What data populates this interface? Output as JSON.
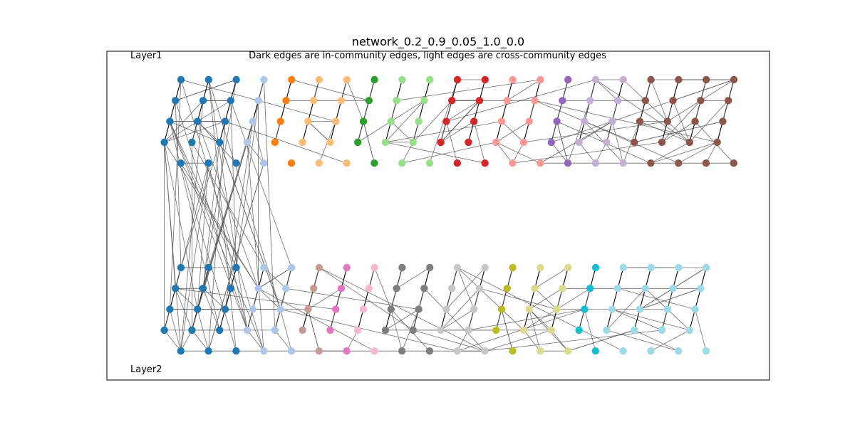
{
  "figure": {
    "title": "network_0.2_0.9_0.05_1.0_0.0",
    "subtitle": "Dark edges are in-community edges, light edges are cross-community edges",
    "layer_labels": [
      "Layer1",
      "Layer2"
    ]
  },
  "palette": [
    "#1f77b4",
    "#aec7e8",
    "#ff7f0e",
    "#ffbb78",
    "#2ca02c",
    "#98df8a",
    "#d62728",
    "#ff9896",
    "#9467bd",
    "#c5b0d5",
    "#8c564b",
    "#c49c94",
    "#e377c2",
    "#f7b6d2",
    "#7f7f7f",
    "#c7c7c7",
    "#bcbd22",
    "#dbdb8d",
    "#17becf",
    "#9edae5"
  ],
  "layers": [
    {
      "name": "Layer1",
      "communities": [
        {
          "color": "#1f77b4",
          "strips": 3,
          "rows": [
            0,
            1,
            2,
            3,
            4
          ]
        },
        {
          "color": "#aec7e8",
          "strips": 1,
          "rows": [
            0,
            1,
            2,
            3,
            4
          ]
        },
        {
          "color": "#ff7f0e",
          "strips": 1,
          "rows": [
            0,
            1,
            2,
            3,
            4
          ]
        },
        {
          "color": "#ffbb78",
          "strips": 2,
          "rows": [
            0,
            1,
            2,
            3,
            4
          ]
        },
        {
          "color": "#2ca02c",
          "strips": 1,
          "rows": [
            0,
            1,
            2,
            3,
            4
          ]
        },
        {
          "color": "#98df8a",
          "strips": 2,
          "rows": [
            0,
            1,
            2,
            3,
            4
          ]
        },
        {
          "color": "#d62728",
          "strips": 2,
          "rows": [
            0,
            1,
            2,
            3,
            4
          ]
        },
        {
          "color": "#ff9896",
          "strips": 2,
          "rows": [
            0,
            1,
            2,
            3,
            4
          ]
        },
        {
          "color": "#9467bd",
          "strips": 1,
          "rows": [
            0,
            1,
            2,
            3,
            4
          ]
        },
        {
          "color": "#c5b0d5",
          "strips": 2,
          "rows": [
            0,
            1,
            2,
            3,
            4
          ]
        },
        {
          "color": "#8c564b",
          "strips": 4,
          "rows": [
            0,
            1,
            2,
            3,
            4
          ]
        }
      ]
    },
    {
      "name": "Layer2",
      "communities": [
        {
          "color": "#1f77b4",
          "strips": 3,
          "rows": [
            0,
            1,
            2,
            3,
            4
          ]
        },
        {
          "color": "#aec7e8",
          "strips": 2,
          "rows": [
            0,
            1,
            2,
            3,
            4
          ]
        },
        {
          "color": "#c49c94",
          "strips": 1,
          "rows": [
            0,
            1,
            2,
            3,
            4
          ]
        },
        {
          "color": "#e377c2",
          "strips": 1,
          "rows": [
            0,
            1,
            2,
            3,
            4
          ]
        },
        {
          "color": "#f7b6d2",
          "strips": 1,
          "rows": [
            0,
            1,
            2,
            3,
            4
          ]
        },
        {
          "color": "#7f7f7f",
          "strips": 2,
          "rows": [
            0,
            1,
            2,
            3,
            4
          ]
        },
        {
          "color": "#c7c7c7",
          "strips": 2,
          "rows": [
            0,
            1,
            2,
            3,
            4
          ]
        },
        {
          "color": "#bcbd22",
          "strips": 1,
          "rows": [
            0,
            1,
            2,
            3,
            4
          ]
        },
        {
          "color": "#dbdb8d",
          "strips": 2,
          "rows": [
            0,
            1,
            2,
            3,
            4
          ]
        },
        {
          "color": "#17becf",
          "strips": 1,
          "rows": [
            0,
            1,
            2,
            3,
            4
          ]
        },
        {
          "color": "#9edae5",
          "strips": 4,
          "rows": [
            0,
            1,
            2,
            3,
            4
          ]
        }
      ]
    }
  ],
  "edge_types": {
    "in_community": "dark",
    "cross_community": "light"
  }
}
